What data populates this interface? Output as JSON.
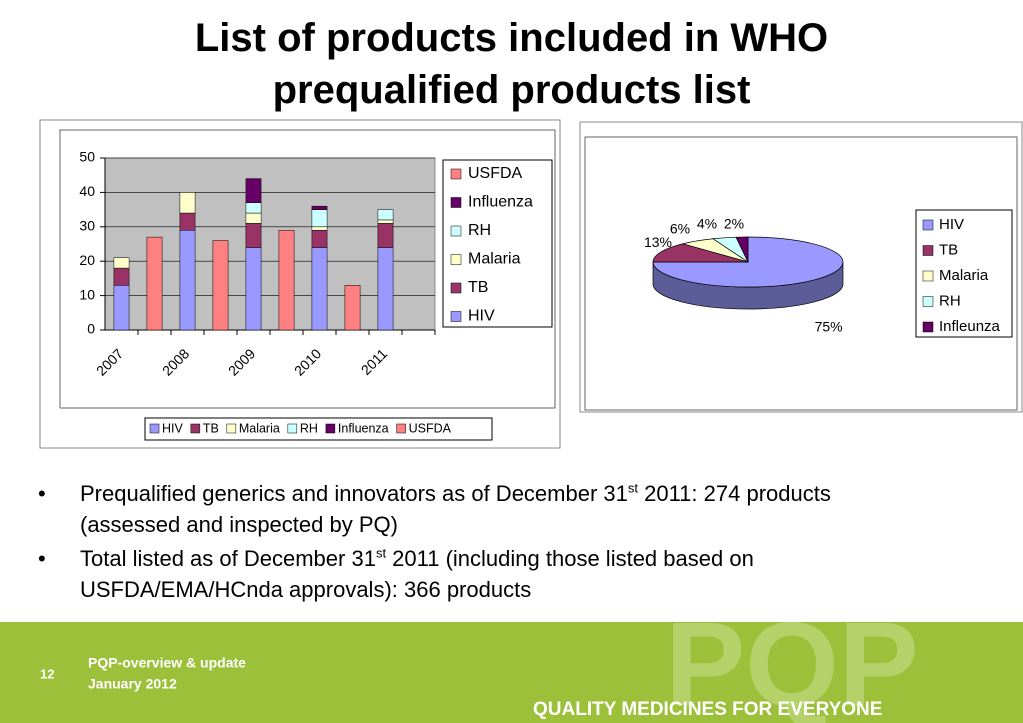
{
  "title": [
    "List of products included in WHO",
    "prequalified products list"
  ],
  "chart_data": [
    {
      "type": "bar",
      "stacked": true,
      "categories": [
        "2007",
        null,
        "2008",
        null,
        "2009",
        null,
        "2010",
        null,
        "2011",
        null
      ],
      "series": [
        {
          "name": "HIV",
          "color": "#9999ff",
          "values": [
            13,
            0,
            29,
            0,
            24,
            0,
            24,
            0,
            24,
            0
          ]
        },
        {
          "name": "TB",
          "color": "#993366",
          "values": [
            5,
            0,
            5,
            0,
            7,
            0,
            5,
            0,
            7,
            0
          ]
        },
        {
          "name": "Malaria",
          "color": "#ffffcc",
          "values": [
            3,
            0,
            6,
            0,
            3,
            0,
            1,
            0,
            1,
            0
          ]
        },
        {
          "name": "RH",
          "color": "#ccffff",
          "values": [
            0,
            0,
            0,
            0,
            3,
            0,
            5,
            0,
            3,
            0
          ]
        },
        {
          "name": "Influenza",
          "color": "#660066",
          "values": [
            0,
            0,
            0,
            0,
            7,
            0,
            1,
            0,
            0,
            0
          ]
        },
        {
          "name": "USFDA",
          "color": "#ff8080",
          "values": [
            0,
            27,
            0,
            26,
            0,
            29,
            0,
            13,
            0,
            0
          ]
        }
      ],
      "ylim": [
        0,
        50
      ],
      "yticks": [
        0,
        10,
        20,
        30,
        40,
        50
      ],
      "grid": true,
      "legend": "right",
      "legend2": "bottom",
      "plot_background": "#c0c0c0"
    },
    {
      "type": "pie",
      "three_d": true,
      "categories": [
        "HIV",
        "TB",
        "Malaria",
        "RH",
        "Infleunza"
      ],
      "values": [
        75,
        13,
        6,
        4,
        2
      ],
      "value_labels": [
        "75%",
        "13%",
        "6%",
        "4%",
        "2%"
      ],
      "colors": [
        "#9999ff",
        "#993366",
        "#ffffcc",
        "#ccffff",
        "#660066"
      ],
      "legend": "right"
    }
  ],
  "bullets": [
    [
      "Prequalified generics and innovators as of December 31",
      "st",
      " 2011: 274 products (assessed and inspected by PQ)"
    ],
    [
      "Total listed as of December 31",
      "st",
      " 2011 (including those listed based on USFDA/EMA/HCnda approvals): 366 products"
    ]
  ],
  "footer": {
    "page": "12",
    "lines": [
      "PQP-overview & update",
      "January 2012"
    ],
    "logo": "PQP",
    "tagline": "QUALITY MEDICINES FOR EVERYONE"
  }
}
